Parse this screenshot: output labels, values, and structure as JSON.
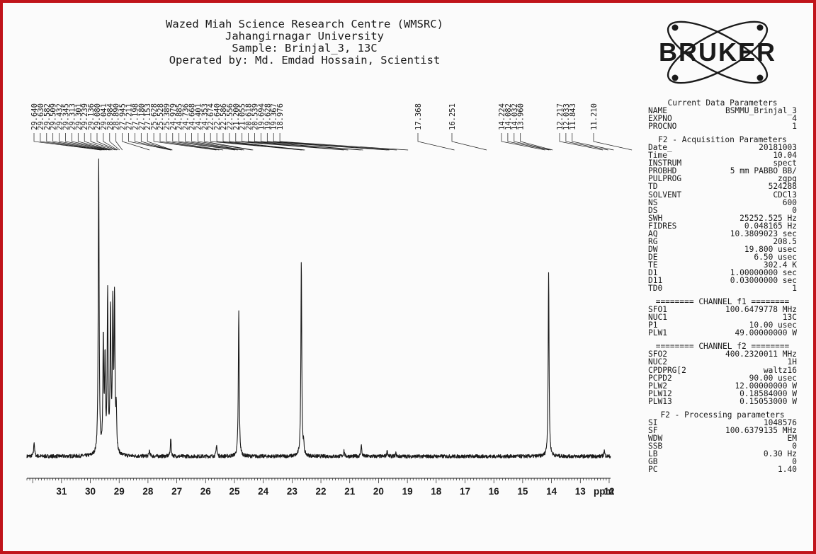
{
  "header": {
    "line1": "Wazed Miah Science Research Centre (WMSRC)",
    "line2": "Jahangirnagar University",
    "line3": "Sample: Brinjal_3, 13C",
    "line4": "Operated by: Md. Emdad Hossain, Scientist"
  },
  "logo": {
    "text": "BRUKER",
    "icon": "atom-orbit-logo"
  },
  "colors": {
    "frame": "#c0141b",
    "ink": "#1a1a1a",
    "background": "#fbfbfb"
  },
  "params": [
    {
      "k": "",
      "v": "",
      "title": "Current Data Parameters"
    },
    {
      "k": "NAME",
      "v": "BSMMU_Brinjal_3"
    },
    {
      "k": "EXPNO",
      "v": "4"
    },
    {
      "k": "PROCNO",
      "v": "1"
    },
    {
      "gap": true
    },
    {
      "title": "F2 - Acquisition Parameters"
    },
    {
      "k": "Date_",
      "v": "20181003"
    },
    {
      "k": "Time",
      "v": "10.04"
    },
    {
      "k": "INSTRUM",
      "v": "spect"
    },
    {
      "k": "PROBHD",
      "v": "5 mm PABBO BB/"
    },
    {
      "k": "PULPROG",
      "v": "zgpg"
    },
    {
      "k": "TD",
      "v": "524288"
    },
    {
      "k": "SOLVENT",
      "v": "CDCl3"
    },
    {
      "k": "NS",
      "v": "600"
    },
    {
      "k": "DS",
      "v": "0"
    },
    {
      "k": "SWH",
      "v": "25252.525 Hz"
    },
    {
      "k": "FIDRES",
      "v": "0.048165 Hz"
    },
    {
      "k": "AQ",
      "v": "10.3809023 sec"
    },
    {
      "k": "RG",
      "v": "208.5"
    },
    {
      "k": "DW",
      "v": "19.800 usec"
    },
    {
      "k": "DE",
      "v": "6.50 usec"
    },
    {
      "k": "TE",
      "v": "302.4 K"
    },
    {
      "k": "D1",
      "v": "1.00000000 sec"
    },
    {
      "k": "D11",
      "v": "0.03000000 sec"
    },
    {
      "k": "TD0",
      "v": "1"
    },
    {
      "gap": true
    },
    {
      "title": "======== CHANNEL f1 ========"
    },
    {
      "k": "SFO1",
      "v": "100.6479778 MHz"
    },
    {
      "k": "NUC1",
      "v": "13C"
    },
    {
      "k": "P1",
      "v": "10.00 usec"
    },
    {
      "k": "PLW1",
      "v": "49.00000000 W"
    },
    {
      "gap": true
    },
    {
      "title": "======== CHANNEL f2 ========"
    },
    {
      "k": "SFO2",
      "v": "400.2320011 MHz"
    },
    {
      "k": "NUC2",
      "v": "1H"
    },
    {
      "k": "CPDPRG[2",
      "v": "waltz16"
    },
    {
      "k": "PCPD2",
      "v": "90.00 usec"
    },
    {
      "k": "PLW2",
      "v": "12.00000000 W"
    },
    {
      "k": "PLW12",
      "v": "0.18584000 W"
    },
    {
      "k": "PLW13",
      "v": "0.15053000 W"
    },
    {
      "gap": true
    },
    {
      "title": "F2 - Processing parameters"
    },
    {
      "k": "SI",
      "v": "1048576"
    },
    {
      "k": "SF",
      "v": "100.6379135 MHz"
    },
    {
      "k": "WDW",
      "v": "EM"
    },
    {
      "k": "SSB",
      "v": "0"
    },
    {
      "k": "LB",
      "v": "0.30 Hz"
    },
    {
      "k": "GB",
      "v": "0"
    },
    {
      "k": "PC",
      "v": "1.40"
    }
  ],
  "chart_data": {
    "type": "line",
    "title": "",
    "xlabel": "ppm",
    "ylabel": "",
    "xlim": [
      32.2,
      11.95
    ],
    "x_reversed": true,
    "y_units": "relative intensity",
    "x_ticks": [
      31,
      30,
      29,
      28,
      27,
      26,
      25,
      24,
      23,
      22,
      21,
      20,
      19,
      18,
      17,
      16,
      15,
      14,
      13,
      12
    ],
    "peak_labels": [
      "29.640",
      "29.630",
      "29.582",
      "29.509",
      "29.432",
      "29.345",
      "29.313",
      "29.301",
      "29.239",
      "29.136",
      "29.080",
      "29.041",
      "28.984",
      "28.890",
      "27.945",
      "27.211",
      "27.198",
      "27.180",
      "27.153",
      "25.628",
      "25.528",
      "25.389",
      "24.979",
      "24.885",
      "24.736",
      "24.668",
      "24.401",
      "24.353",
      "22.674",
      "22.640",
      "22.586",
      "22.556",
      "21.200",
      "21.055",
      "20.618",
      "20.539",
      "19.694",
      "19.628",
      "19.367",
      "18.976",
      "17.368",
      "16.251",
      "14.224",
      "14.082",
      "14.032",
      "13.960",
      "12.217",
      "12.033",
      "11.843",
      "11.210"
    ],
    "peaks": [
      {
        "x": 31.95,
        "y": 0.05
      },
      {
        "x": 29.71,
        "y": 1.0
      },
      {
        "x": 29.55,
        "y": 0.38
      },
      {
        "x": 29.49,
        "y": 0.3
      },
      {
        "x": 29.4,
        "y": 0.53
      },
      {
        "x": 29.3,
        "y": 0.48
      },
      {
        "x": 29.22,
        "y": 0.48
      },
      {
        "x": 29.16,
        "y": 0.51
      },
      {
        "x": 29.1,
        "y": 0.14
      },
      {
        "x": 27.95,
        "y": 0.02
      },
      {
        "x": 27.21,
        "y": 0.06
      },
      {
        "x": 25.62,
        "y": 0.04
      },
      {
        "x": 24.85,
        "y": 0.49
      },
      {
        "x": 22.68,
        "y": 0.66
      },
      {
        "x": 22.6,
        "y": 0.03
      },
      {
        "x": 21.2,
        "y": 0.02
      },
      {
        "x": 20.6,
        "y": 0.04
      },
      {
        "x": 19.7,
        "y": 0.02
      },
      {
        "x": 19.4,
        "y": 0.01
      },
      {
        "x": 14.1,
        "y": 0.62
      },
      {
        "x": 12.17,
        "y": 0.02
      }
    ]
  }
}
